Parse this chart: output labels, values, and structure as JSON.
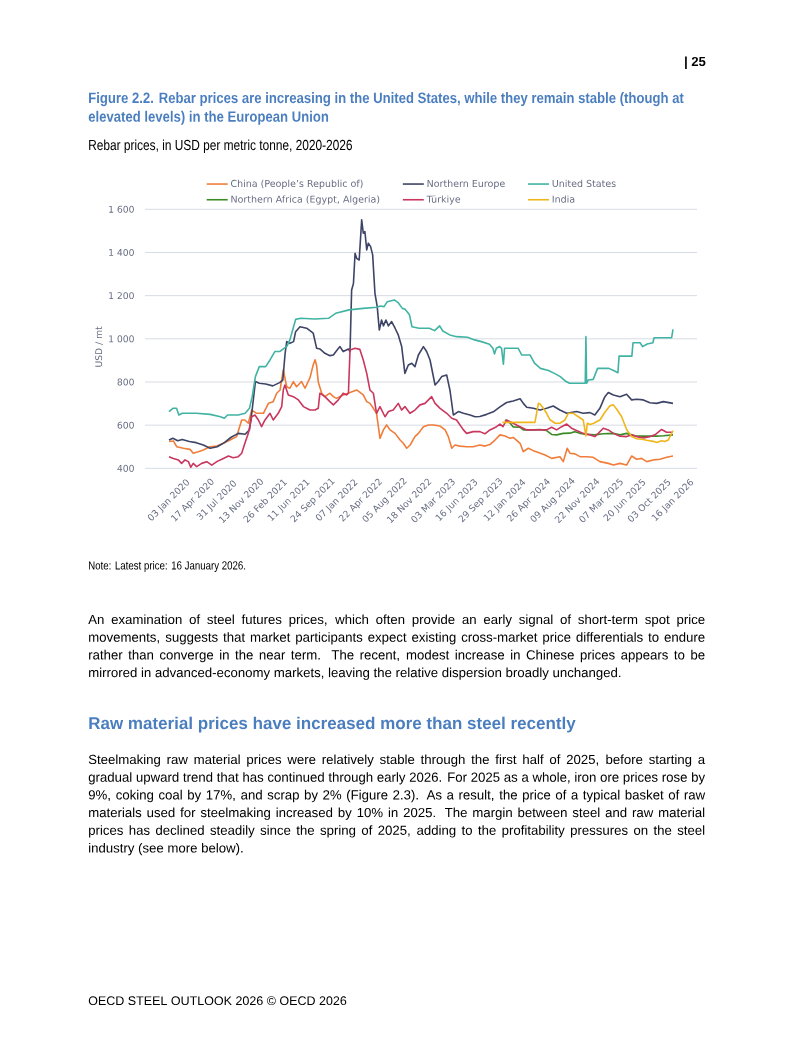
{
  "chart_data": {
    "type": "line",
    "title": "Figure 2.2. Rebar prices are increasing in the United States, while they remain stable (though at elevated levels) in the European Union",
    "subtitle": "Rebar prices, in USD per metric tonne, 2020-2026",
    "ylabel": "USD / mt",
    "xlim": [
      "2019-09-20",
      "2026-05-01"
    ],
    "xticks": [
      {
        "value": "2020-01-03",
        "label": "03 Jan 2020"
      },
      {
        "value": "2020-04-17",
        "label": "17 Apr 2020"
      },
      {
        "value": "2020-07-31",
        "label": "31 Jul 2020"
      },
      {
        "value": "2020-11-13",
        "label": "13 Nov 2020"
      },
      {
        "value": "2021-02-26",
        "label": "26 Feb 2021"
      },
      {
        "value": "2021-06-11",
        "label": "11 Jun 2021"
      },
      {
        "value": "2021-09-24",
        "label": "24 Sep 2021"
      },
      {
        "value": "2022-01-07",
        "label": "07 Jan 2022"
      },
      {
        "value": "2022-04-22",
        "label": "22 Apr 2022"
      },
      {
        "value": "2022-08-05",
        "label": "05 Aug 2022"
      },
      {
        "value": "2022-11-18",
        "label": "18 Nov 2022"
      },
      {
        "value": "2023-03-03",
        "label": "03 Mar 2023"
      },
      {
        "value": "2023-06-16",
        "label": "16 Jun 2023"
      },
      {
        "value": "2023-09-29",
        "label": "29 Sep 2023"
      },
      {
        "value": "2024-01-12",
        "label": "12 Jan 2024"
      },
      {
        "value": "2024-04-26",
        "label": "26 Apr 2024"
      },
      {
        "value": "2024-08-09",
        "label": "09 Aug 2024"
      },
      {
        "value": "2024-11-22",
        "label": "22 Nov 2024"
      },
      {
        "value": "2025-03-07",
        "label": "07 Mar 2025"
      },
      {
        "value": "2025-06-20",
        "label": "20 Jun 2025"
      },
      {
        "value": "2025-10-03",
        "label": "03 Oct 2025"
      },
      {
        "value": "2026-01-16",
        "label": "16 Jan 2026"
      }
    ],
    "ylim": [
      390,
      1600
    ],
    "yticks": [
      400,
      600,
      800,
      {
        "value": 1000,
        "label": "1 000"
      },
      {
        "value": 1200,
        "label": "1 200"
      },
      {
        "value": 1400,
        "label": "1 400"
      },
      {
        "value": 1600,
        "label": "1 600"
      }
    ],
    "grid": "y",
    "legend": "top",
    "series": [
      {
        "name": "China (People’s Republic of)",
        "color": "#f07d3a",
        "x": [
          "2020-01-03",
          "2020-01-22",
          "2020-02-06",
          "2020-03-06",
          "2020-04-04",
          "2020-04-18",
          "2020-05-10",
          "2020-06-01",
          "2020-06-30",
          "2020-07-30",
          "2020-08-28",
          "2020-09-26",
          "2020-10-25",
          "2020-11-16",
          "2020-11-30",
          "2020-12-15",
          "2020-12-30",
          "2021-01-20",
          "2021-02-19",
          "2021-03-13",
          "2021-04-03",
          "2021-04-18",
          "2021-05-03",
          "2021-05-17",
          "2021-06-01",
          "2021-06-15",
          "2021-06-30",
          "2021-07-14",
          "2021-08-05",
          "2021-08-20",
          "2021-09-11",
          "2021-09-25",
          "2021-10-03",
          "2021-10-10",
          "2021-10-17",
          "2021-11-01",
          "2021-11-15",
          "2021-12-07",
          "2021-12-22",
          "2022-01-05",
          "2022-02-03",
          "2022-03-05",
          "2022-04-03",
          "2022-05-02",
          "2022-05-17",
          "2022-05-31",
          "2022-06-15",
          "2022-06-29",
          "2022-07-07",
          "2022-07-14",
          "2022-07-29",
          "2022-08-12",
          "2022-08-27",
          "2022-09-18",
          "2022-10-10",
          "2022-10-24",
          "2022-11-08",
          "2022-11-23",
          "2022-12-14",
          "2022-12-29",
          "2023-01-20",
          "2023-02-11",
          "2023-03-05",
          "2023-04-03",
          "2023-04-25",
          "2023-05-09",
          "2023-05-24",
          "2023-06-07",
          "2023-06-29",
          "2023-07-28",
          "2023-08-26",
          "2023-09-24",
          "2023-10-16",
          "2023-11-07",
          "2023-11-29",
          "2023-12-21",
          "2024-01-12",
          "2024-02-03",
          "2024-02-17",
          "2024-03-18",
          "2024-04-01",
          "2024-04-23",
          "2024-05-15",
          "2024-06-06",
          "2024-07-05",
          "2024-08-03",
          "2024-09-08",
          "2024-09-23",
          "2024-10-10",
          "2024-10-22",
          "2024-11-13",
          "2024-12-05",
          "2025-01-03",
          "2025-02-01",
          "2025-03-02",
          "2025-04-08",
          "2025-04-30",
          "2025-05-29",
          "2025-06-27",
          "2025-07-19",
          "2025-08-10",
          "2025-09-01",
          "2025-09-23",
          "2025-10-22",
          "2025-11-20",
          "2025-12-19",
          "2026-01-16"
        ],
        "values": [
          524,
          527,
          500,
          493,
          488,
          470,
          477,
          485,
          500,
          503,
          516,
          531,
          547,
          624,
          624,
          609,
          670,
          655,
          655,
          701,
          709,
          748,
          763,
          856,
          778,
          771,
          802,
          778,
          802,
          771,
          820,
          880,
          903,
          875,
          800,
          748,
          732,
          748,
          732,
          724,
          740,
          751,
          763,
          740,
          709,
          701,
          678,
          655,
          593,
          539,
          578,
          601,
          578,
          562,
          531,
          516,
          493,
          508,
          547,
          562,
          593,
          601,
          601,
          596,
          578,
          547,
          493,
          508,
          503,
          500,
          500,
          508,
          503,
          510,
          531,
          555,
          550,
          539,
          543,
          516,
          477,
          493,
          482,
          473,
          462,
          446,
          454,
          431,
          493,
          470,
          467,
          454,
          454,
          451,
          431,
          423,
          415,
          423,
          415,
          457,
          442,
          446,
          431,
          439,
          442,
          451,
          457
        ]
      },
      {
        "name": "Northern Europe",
        "color": "#3e4466",
        "x": [
          "2020-01-03",
          "2020-01-20",
          "2020-02-10",
          "2020-03-01",
          "2020-04-01",
          "2020-05-01",
          "2020-06-01",
          "2020-07-01",
          "2020-08-01",
          "2020-09-01",
          "2020-10-01",
          "2020-11-01",
          "2020-12-01",
          "2020-12-20",
          "2020-12-30",
          "2021-01-15",
          "2021-02-01",
          "2021-03-01",
          "2021-04-01",
          "2021-05-01",
          "2021-05-15",
          "2021-05-25",
          "2021-06-01",
          "2021-06-15",
          "2021-07-01",
          "2021-07-10",
          "2021-07-29",
          "2021-08-27",
          "2021-09-25",
          "2021-10-10",
          "2021-10-24",
          "2021-11-15",
          "2021-12-07",
          "2021-12-22",
          "2022-01-05",
          "2022-01-20",
          "2022-02-03",
          "2022-02-26",
          "2022-03-05",
          "2022-03-12",
          "2022-03-20",
          "2022-03-27",
          "2022-04-03",
          "2022-04-14",
          "2022-04-25",
          "2022-05-02",
          "2022-05-09",
          "2022-05-17",
          "2022-05-24",
          "2022-06-03",
          "2022-06-12",
          "2022-06-22",
          "2022-07-02",
          "2022-07-11",
          "2022-07-21",
          "2022-07-29",
          "2022-08-09",
          "2022-08-20",
          "2022-09-03",
          "2022-09-18",
          "2022-10-02",
          "2022-10-17",
          "2022-10-31",
          "2022-11-15",
          "2022-11-30",
          "2022-12-14",
          "2022-12-29",
          "2023-01-20",
          "2023-02-03",
          "2023-02-18",
          "2023-03-12",
          "2023-03-26",
          "2023-04-10",
          "2023-05-02",
          "2023-05-16",
          "2023-05-31",
          "2023-06-22",
          "2023-07-14",
          "2023-08-12",
          "2023-09-03",
          "2023-09-24",
          "2023-10-24",
          "2023-11-22",
          "2023-12-21",
          "2024-01-19",
          "2024-02-17",
          "2024-03-18",
          "2024-04-01",
          "2024-04-16",
          "2024-05-15",
          "2024-06-13",
          "2024-07-12",
          "2024-08-10",
          "2024-09-08",
          "2024-10-08",
          "2024-11-20",
          "2024-12-19",
          "2025-01-18",
          "2025-02-08",
          "2025-03-02",
          "2025-03-24",
          "2025-04-08",
          "2025-04-30",
          "2025-05-29",
          "2025-06-27",
          "2025-07-19",
          "2025-08-10",
          "2025-09-08",
          "2025-10-07",
          "2025-11-05",
          "2025-12-05",
          "2026-01-16"
        ],
        "values": [
          531,
          539,
          528,
          534,
          524,
          519,
          508,
          493,
          500,
          519,
          544,
          562,
          558,
          578,
          655,
          802,
          794,
          791,
          782,
          797,
          809,
          933,
          987,
          979,
          987,
          1033,
          1056,
          1049,
          1026,
          956,
          953,
          933,
          922,
          925,
          945,
          964,
          941,
          953,
          941,
          1226,
          1257,
          1396,
          1373,
          1365,
          1551,
          1489,
          1497,
          1412,
          1443,
          1427,
          1389,
          1211,
          1149,
          1041,
          1087,
          1060,
          1087,
          1060,
          1080,
          1049,
          1018,
          964,
          840,
          879,
          887,
          871,
          925,
          964,
          941,
          902,
          786,
          802,
          825,
          832,
          763,
          647,
          663,
          655,
          647,
          639,
          640,
          650,
          662,
          685,
          705,
          712,
          722,
          701,
          683,
          678,
          670,
          678,
          689,
          670,
          655,
          663,
          655,
          658,
          647,
          678,
          732,
          751,
          740,
          732,
          743,
          717,
          720,
          717,
          704,
          701,
          709,
          701
        ]
      },
      {
        "name": "United States",
        "color": "#41b3a3",
        "x": [
          "2020-01-03",
          "2020-01-20",
          "2020-02-05",
          "2020-02-15",
          "2020-03-01",
          "2020-05-01",
          "2020-07-01",
          "2020-08-15",
          "2020-09-01",
          "2020-09-15",
          "2020-11-01",
          "2020-12-01",
          "2020-12-20",
          "2021-01-01",
          "2021-01-15",
          "2021-02-01",
          "2021-03-01",
          "2021-03-20",
          "2021-04-10",
          "2021-05-01",
          "2021-05-20",
          "2021-06-01",
          "2021-06-15",
          "2021-07-01",
          "2021-07-10",
          "2021-08-01",
          "2021-10-01",
          "2021-12-01",
          "2022-01-01",
          "2022-03-01",
          "2022-05-01",
          "2022-07-01",
          "2022-07-15",
          "2022-08-01",
          "2022-08-15",
          "2022-09-15",
          "2022-10-01",
          "2022-10-20",
          "2022-11-01",
          "2022-11-20",
          "2022-12-01",
          "2023-01-01",
          "2023-02-15",
          "2023-03-10",
          "2023-04-01",
          "2023-04-15",
          "2023-05-15",
          "2023-06-15",
          "2023-08-01",
          "2023-09-01",
          "2023-10-01",
          "2023-11-05",
          "2023-11-20",
          "2023-11-27",
          "2023-12-05",
          "2023-12-20",
          "2023-12-28",
          "2024-01-05",
          "2024-01-10",
          "2024-03-10",
          "2024-03-25",
          "2024-05-01",
          "2024-05-20",
          "2024-06-15",
          "2024-07-20",
          "2024-08-15",
          "2024-09-10",
          "2024-10-05",
          "2024-10-20",
          "2024-12-28",
          "2024-12-31",
          "2025-01-03",
          "2025-01-10",
          "2025-02-01",
          "2025-02-20",
          "2025-04-10",
          "2025-05-01",
          "2025-05-20",
          "2025-05-25",
          "2025-07-20",
          "2025-07-25",
          "2025-08-25",
          "2025-09-05",
          "2025-09-25",
          "2025-10-20",
          "2025-10-25",
          "2026-01-10",
          "2026-01-16"
        ],
        "values": [
          663,
          678,
          678,
          647,
          655,
          655,
          650,
          639,
          632,
          647,
          647,
          655,
          678,
          732,
          825,
          871,
          871,
          902,
          941,
          941,
          956,
          964,
          995,
          1056,
          1090,
          1095,
          1092,
          1095,
          1118,
          1134,
          1141,
          1146,
          1152,
          1149,
          1172,
          1180,
          1168,
          1141,
          1137,
          1111,
          1056,
          1049,
          1049,
          1038,
          1060,
          1036,
          1018,
          1010,
          1007,
          995,
          987,
          975,
          956,
          930,
          956,
          964,
          956,
          882,
          956,
          956,
          925,
          925,
          887,
          863,
          853,
          840,
          825,
          802,
          794,
          794,
          1010,
          794,
          809,
          812,
          863,
          863,
          853,
          843,
          920,
          920,
          982,
          982,
          964,
          976,
          982,
          1005,
          1005,
          1044
        ]
      },
      {
        "name": "Northern Africa (Egypt, Algeria)",
        "color": "#3b8c25",
        "x": [
          "2024-01-12",
          "2024-02-03",
          "2024-02-17",
          "2024-03-18",
          "2024-04-01",
          "2024-05-15",
          "2024-06-13",
          "2024-07-12",
          "2024-08-03",
          "2024-08-25",
          "2024-09-23",
          "2024-10-22",
          "2024-11-13",
          "2024-12-05",
          "2025-01-03",
          "2025-02-08",
          "2025-03-17",
          "2025-04-30",
          "2025-05-29",
          "2025-06-27",
          "2025-07-19",
          "2025-08-10",
          "2025-09-08",
          "2025-10-07",
          "2025-11-05",
          "2025-12-05",
          "2026-01-16"
        ],
        "values": [
          624,
          610,
          592,
          590,
          578,
          578,
          580,
          575,
          557,
          555,
          562,
          563,
          570,
          562,
          558,
          555,
          560,
          562,
          555,
          562,
          555,
          549,
          549,
          549,
          549,
          551,
          555
        ]
      },
      {
        "name": "Türkiye",
        "color": "#c9375f",
        "x": [
          "2020-01-03",
          "2020-01-22",
          "2020-02-13",
          "2020-02-27",
          "2020-03-13",
          "2020-03-28",
          "2020-04-07",
          "2020-04-18",
          "2020-05-03",
          "2020-05-25",
          "2020-06-16",
          "2020-07-08",
          "2020-07-30",
          "2020-08-28",
          "2020-09-19",
          "2020-10-10",
          "2020-11-01",
          "2020-11-16",
          "2020-11-30",
          "2020-12-15",
          "2020-12-30",
          "2021-01-13",
          "2021-01-28",
          "2021-02-11",
          "2021-02-26",
          "2021-03-20",
          "2021-04-03",
          "2021-04-25",
          "2021-05-10",
          "2021-05-17",
          "2021-05-24",
          "2021-06-08",
          "2021-06-30",
          "2021-07-22",
          "2021-08-13",
          "2021-09-11",
          "2021-10-03",
          "2021-10-17",
          "2021-10-24",
          "2021-11-15",
          "2021-12-07",
          "2021-12-22",
          "2022-01-13",
          "2022-02-03",
          "2022-02-18",
          "2022-02-26",
          "2022-03-05",
          "2022-03-27",
          "2022-04-17",
          "2022-05-02",
          "2022-05-17",
          "2022-05-31",
          "2022-06-15",
          "2022-06-29",
          "2022-07-14",
          "2022-08-05",
          "2022-08-20",
          "2022-09-10",
          "2022-10-02",
          "2022-10-17",
          "2022-10-31",
          "2022-11-22",
          "2022-12-14",
          "2023-01-05",
          "2023-01-27",
          "2023-02-25",
          "2023-03-12",
          "2023-04-03",
          "2023-05-02",
          "2023-05-24",
          "2023-06-14",
          "2023-07-14",
          "2023-07-28",
          "2023-08-26",
          "2023-09-24",
          "2023-10-16",
          "2023-11-07",
          "2023-12-06",
          "2023-12-21",
          "2024-01-03",
          "2024-01-19",
          "2024-02-03",
          "2024-03-18",
          "2024-04-16",
          "2024-05-15",
          "2024-06-13",
          "2024-07-12",
          "2024-08-03",
          "2024-08-25",
          "2024-09-16",
          "2024-10-08",
          "2024-10-29",
          "2024-11-20",
          "2024-12-19",
          "2025-01-18",
          "2025-02-08",
          "2025-02-23",
          "2025-03-17",
          "2025-04-08",
          "2025-04-30",
          "2025-05-29",
          "2025-06-27",
          "2025-07-19",
          "2025-08-10",
          "2025-09-08",
          "2025-10-07",
          "2025-10-29",
          "2025-11-27",
          "2025-12-19",
          "2026-01-16"
        ],
        "values": [
          454,
          446,
          439,
          423,
          439,
          431,
          405,
          423,
          408,
          423,
          431,
          415,
          431,
          446,
          457,
          449,
          454,
          470,
          516,
          562,
          639,
          647,
          624,
          593,
          624,
          655,
          624,
          655,
          686,
          763,
          786,
          740,
          732,
          717,
          686,
          670,
          670,
          678,
          748,
          732,
          709,
          694,
          717,
          748,
          740,
          748,
          948,
          956,
          951,
          902,
          840,
          763,
          748,
          655,
          686,
          639,
          663,
          670,
          701,
          670,
          686,
          655,
          670,
          694,
          701,
          732,
          701,
          678,
          655,
          632,
          624,
          578,
          562,
          570,
          570,
          560,
          578,
          593,
          605,
          593,
          624,
          616,
          593,
          578,
          578,
          578,
          578,
          590,
          578,
          593,
          605,
          586,
          575,
          562,
          555,
          547,
          562,
          586,
          578,
          562,
          549,
          547,
          555,
          547,
          541,
          547,
          555,
          580,
          567,
          567
        ]
      },
      {
        "name": "India",
        "color": "#efb51b",
        "x": [
          "2024-01-01",
          "2024-05-22",
          "2024-06-06",
          "2024-06-13",
          "2024-06-28",
          "2024-07-12",
          "2024-07-27",
          "2024-08-18",
          "2024-09-08",
          "2024-09-30",
          "2024-10-15",
          "2024-11-06",
          "2024-11-28",
          "2024-12-19",
          "2024-12-31",
          "2025-01-06",
          "2025-01-18",
          "2025-02-01",
          "2025-03-02",
          "2025-03-24",
          "2025-04-15",
          "2025-04-30",
          "2025-05-14",
          "2025-06-05",
          "2025-06-27",
          "2025-07-19",
          "2025-08-10",
          "2025-09-01",
          "2025-09-23",
          "2025-10-22",
          "2025-11-05",
          "2025-11-27",
          "2025-12-12",
          "2025-12-26",
          "2026-01-16"
        ],
        "values": [
          613,
          613,
          701,
          698,
          678,
          655,
          625,
          609,
          609,
          624,
          655,
          655,
          639,
          624,
          550,
          609,
          603,
          608,
          624,
          660,
          690,
          694,
          675,
          640,
          580,
          547,
          537,
          535,
          530,
          525,
          520,
          528,
          524,
          531,
          575
        ]
      }
    ],
    "annotations": [
      "Note: Latest price: 16 January 2026.",
      "An examination of steel futures prices, which often provide an early signal of short-term spot price movements, suggests that market participants expect existing cross-market price differentials to endure rather than converge in the near term. The recent, modest increase in Chinese prices appears to be mirrored in advanced-economy markets, leaving the relative dispersion broadly unchanged.",
      "Raw material prices have increased more than steel recently",
      "Steelmaking raw material prices were relatively stable through the first half of 2025, before starting a gradual upward trend that has continued through early 2026. For 2025 as a whole, iron ore prices rose by 9%, coking coal by 17%, and scrap by 2% (Figure 2.3). As a result, the price of a typical basket of raw materials used for steelmaking increased by 10% in 2025. The margin between steel and raw material prices has declined steadily since the spring of 2025, adding to the profitability pressures on the steel industry (see more below).",
      "OECD STEEL OUTLOOK 2026 © OECD 2026",
      "| 25"
    ]
  }
}
